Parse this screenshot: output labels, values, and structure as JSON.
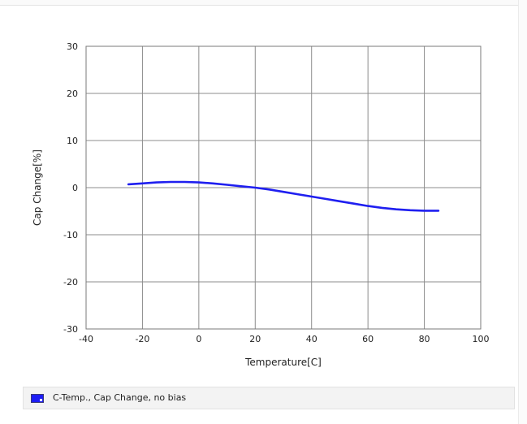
{
  "chart_data": {
    "type": "line",
    "xlabel": "Temperature[C]",
    "ylabel": "Cap Change[%]",
    "xlim": [
      -40,
      100
    ],
    "ylim": [
      -30,
      30
    ],
    "xticks": [
      -40,
      -20,
      0,
      20,
      40,
      60,
      80,
      100
    ],
    "yticks": [
      30,
      20,
      10,
      0,
      -10,
      -20,
      -30
    ],
    "grid": true,
    "legend_position": "bottom",
    "series": [
      {
        "name": "C-Temp., Cap Change, no bias",
        "color": "#1f1ff0",
        "x": [
          -25,
          -20,
          -15,
          -10,
          -5,
          0,
          5,
          10,
          15,
          20,
          25,
          30,
          35,
          40,
          45,
          50,
          55,
          60,
          65,
          70,
          75,
          80,
          85
        ],
        "y": [
          0.7,
          0.9,
          1.1,
          1.2,
          1.2,
          1.1,
          0.9,
          0.6,
          0.3,
          0.0,
          -0.4,
          -0.9,
          -1.4,
          -1.9,
          -2.4,
          -2.9,
          -3.4,
          -3.9,
          -4.3,
          -4.6,
          -4.8,
          -4.9,
          -4.9
        ]
      }
    ]
  }
}
